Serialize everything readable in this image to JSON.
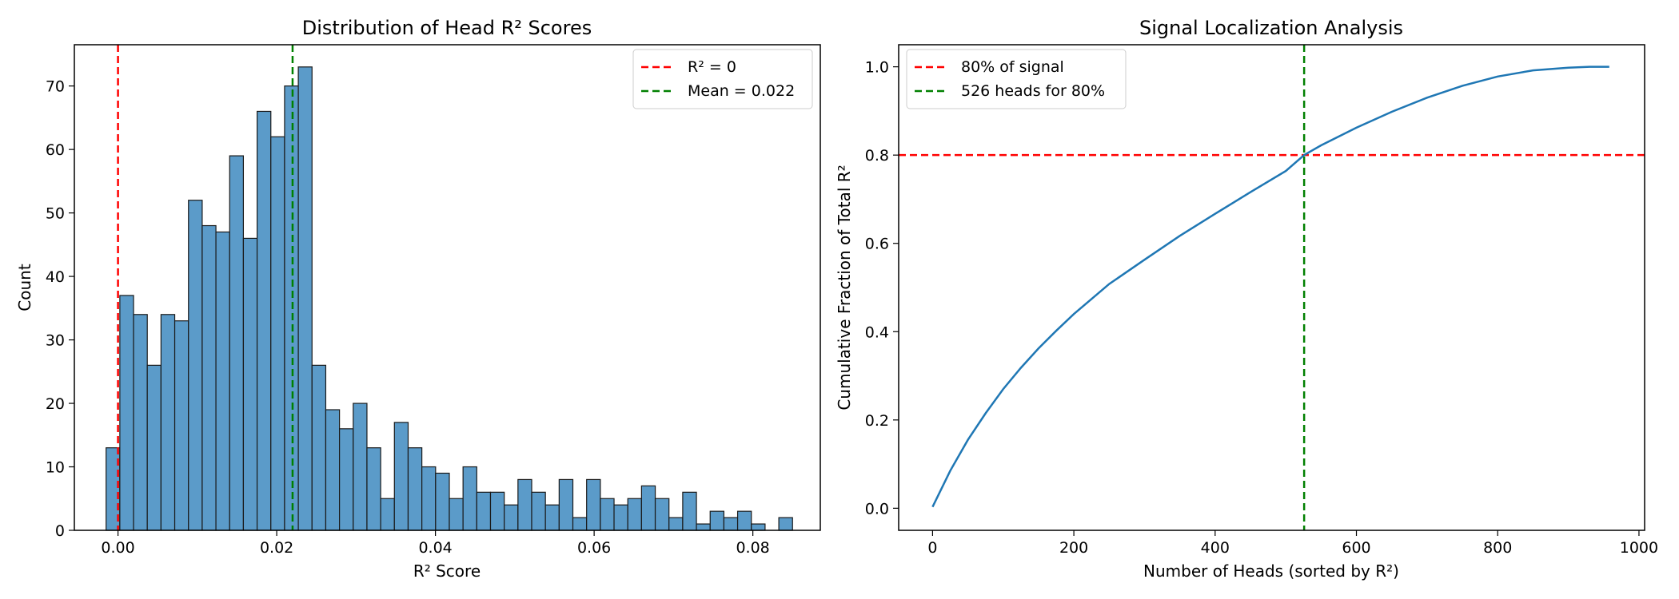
{
  "chart_data": [
    {
      "type": "bar",
      "title": "Distribution of Head R² Scores",
      "xlabel": "R² Score",
      "ylabel": "Count",
      "xlim": [
        -0.0055,
        0.0885
      ],
      "ylim": [
        0,
        76.5
      ],
      "xticks": [
        0.0,
        0.02,
        0.04,
        0.06,
        0.08
      ],
      "xtick_labels": [
        "0.00",
        "0.02",
        "0.04",
        "0.06",
        "0.08"
      ],
      "yticks": [
        0,
        10,
        20,
        30,
        40,
        50,
        60,
        70
      ],
      "ytick_labels": [
        "0",
        "10",
        "20",
        "30",
        "40",
        "50",
        "60",
        "70"
      ],
      "bin_start": -0.0015,
      "bin_width": 0.00173,
      "counts": [
        13,
        37,
        34,
        26,
        34,
        33,
        52,
        48,
        47,
        59,
        46,
        66,
        62,
        70,
        73,
        26,
        19,
        16,
        20,
        13,
        5,
        17,
        13,
        10,
        9,
        5,
        10,
        6,
        6,
        4,
        8,
        6,
        4,
        8,
        2,
        8,
        5,
        4,
        5,
        7,
        5,
        2,
        6,
        1,
        3,
        2,
        3,
        1,
        0,
        2
      ],
      "bar_color": "#5b9bc9",
      "lines": [
        {
          "orientation": "vertical",
          "x": 0.0,
          "color": "#ff0000",
          "label": "R² = 0"
        },
        {
          "orientation": "vertical",
          "x": 0.022,
          "color": "#008000",
          "label": "Mean = 0.022"
        }
      ],
      "legend": "top-right",
      "grid": false
    },
    {
      "type": "line",
      "title": "Signal Localization Analysis",
      "xlabel": "Number of Heads (sorted by R²)",
      "ylabel": "Cumulative Fraction of Total R²",
      "xlim": [
        -48,
        1008
      ],
      "ylim": [
        -0.05,
        1.05
      ],
      "xticks": [
        0,
        200,
        400,
        600,
        800,
        1000
      ],
      "xtick_labels": [
        "0",
        "200",
        "400",
        "600",
        "800",
        "1000"
      ],
      "yticks": [
        0.0,
        0.2,
        0.4,
        0.6,
        0.8,
        1.0
      ],
      "ytick_labels": [
        "0.0",
        "0.2",
        "0.4",
        "0.6",
        "0.8",
        "1.0"
      ],
      "series": [
        {
          "color": "#1f77b4",
          "x": [
            0,
            25,
            50,
            75,
            100,
            125,
            150,
            175,
            200,
            250,
            300,
            350,
            400,
            450,
            500,
            526,
            550,
            600,
            650,
            700,
            750,
            800,
            850,
            900,
            930,
            958
          ],
          "y": [
            0.003,
            0.085,
            0.155,
            0.215,
            0.27,
            0.318,
            0.362,
            0.402,
            0.44,
            0.508,
            0.563,
            0.617,
            0.667,
            0.716,
            0.764,
            0.8,
            0.822,
            0.862,
            0.898,
            0.93,
            0.957,
            0.978,
            0.992,
            0.998,
            1.0,
            1.0
          ]
        }
      ],
      "lines": [
        {
          "orientation": "horizontal",
          "y": 0.8,
          "color": "#ff0000",
          "label": "80% of signal"
        },
        {
          "orientation": "vertical",
          "x": 526,
          "color": "#008000",
          "label": "526 heads for 80%"
        }
      ],
      "legend": "top-left",
      "grid": false
    }
  ]
}
